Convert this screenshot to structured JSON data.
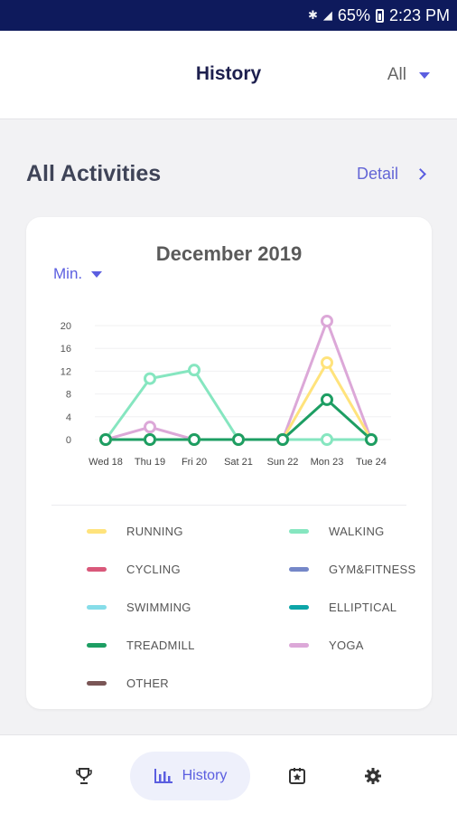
{
  "status_bar": {
    "battery": "65%",
    "time": "2:23 PM",
    "icons": [
      "bluetooth-icon",
      "signal-icon",
      "battery-icon"
    ]
  },
  "header": {
    "title": "History",
    "filter_value": "All"
  },
  "section": {
    "heading": "All Activities",
    "detail_label": "Detail"
  },
  "card": {
    "month": "December 2019",
    "unit": "Min."
  },
  "chart_data": {
    "type": "line",
    "title": "December 2019",
    "ylabel": "Min.",
    "categories": [
      "Wed 18",
      "Thu 19",
      "Fri 20",
      "Sat 21",
      "Sun 22",
      "Mon 23",
      "Tue 24"
    ],
    "yticks": [
      0,
      4,
      8,
      12,
      16,
      20
    ],
    "ylim": [
      0,
      20
    ],
    "grid": true,
    "series": [
      {
        "name": "WALKING",
        "color": "#86e6c0",
        "values": [
          0,
          10.7,
          12.2,
          0,
          0,
          0,
          0
        ]
      },
      {
        "name": "YOGA",
        "color": "#dca8d8",
        "values": [
          0,
          2.2,
          0,
          0,
          0,
          20.8,
          0
        ]
      },
      {
        "name": "RUNNING",
        "color": "#ffe37c",
        "values": [
          0,
          0,
          0,
          0,
          0,
          13.5,
          0
        ]
      },
      {
        "name": "TREADMILL",
        "color": "#1d9e63",
        "values": [
          0,
          0,
          0,
          0,
          0,
          7.0,
          0
        ]
      }
    ]
  },
  "legend": [
    {
      "label": "RUNNING",
      "color": "#ffe37c"
    },
    {
      "label": "WALKING",
      "color": "#86e6c0"
    },
    {
      "label": "CYCLING",
      "color": "#d9587a"
    },
    {
      "label": "GYM&FITNESS",
      "color": "#7587c8"
    },
    {
      "label": "SWIMMING",
      "color": "#86dde9"
    },
    {
      "label": "ELLIPTICAL",
      "color": "#0ca5a8"
    },
    {
      "label": "TREADMILL",
      "color": "#1d9e63"
    },
    {
      "label": "YOGA",
      "color": "#dca8d8"
    },
    {
      "label": "OTHER",
      "color": "#7a5656"
    }
  ],
  "bottom_nav": {
    "items": [
      {
        "icon": "trophy-icon",
        "label": ""
      },
      {
        "icon": "bar-chart-icon",
        "label": "History"
      },
      {
        "icon": "star-card-icon",
        "label": ""
      },
      {
        "icon": "gear-icon",
        "label": ""
      }
    ]
  },
  "colors": {
    "accent": "#5b5ee0",
    "status_bar": "#0e1a5c",
    "title": "#1d1f4e"
  }
}
